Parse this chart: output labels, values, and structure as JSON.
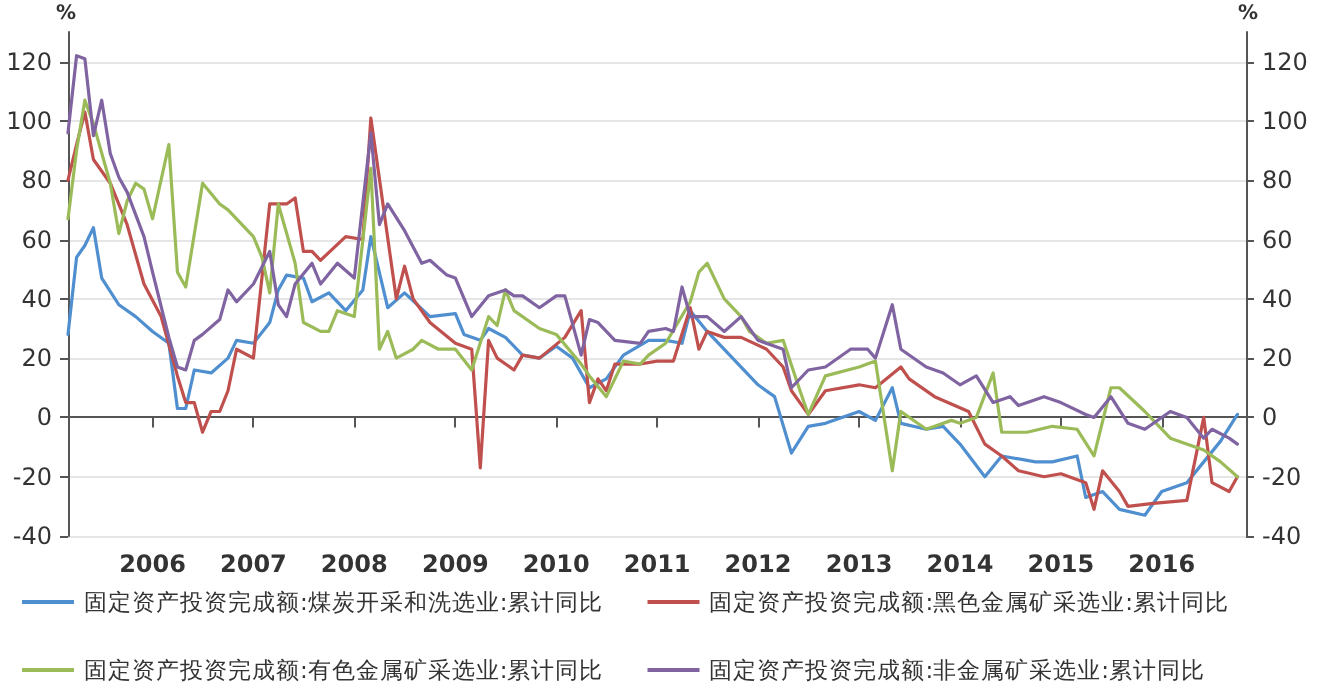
{
  "chart_data": {
    "type": "line",
    "ylabel": "%",
    "y2label": "%",
    "legend": "bottom",
    "grid": "y",
    "marker": "none",
    "line_style": "solid",
    "xlim": [
      "2005-03",
      "2016-11"
    ],
    "xticks": [
      "2006",
      "2007",
      "2008",
      "2009",
      "2010",
      "2011",
      "2012",
      "2013",
      "2014",
      "2015",
      "2016"
    ],
    "ylim": [
      -40,
      130
    ],
    "yticks": [
      -40,
      -20,
      0,
      20,
      40,
      60,
      80,
      100,
      120
    ],
    "y2lim": [
      -40,
      130
    ],
    "y2ticks": [
      -40,
      -20,
      0,
      20,
      40,
      60,
      80,
      100,
      120
    ],
    "series": [
      {
        "name": "固定资产投资完成额:煤炭开采和洗选业:累计同比",
        "color": "#4f8fd0",
        "x": [
          "2005-03",
          "2005-04",
          "2005-05",
          "2005-06",
          "2005-07",
          "2005-09",
          "2005-11",
          "2006-01",
          "2006-03",
          "2006-04",
          "2006-05",
          "2006-06",
          "2006-08",
          "2006-10",
          "2006-11",
          "2007-01",
          "2007-03",
          "2007-04",
          "2007-05",
          "2007-07",
          "2007-08",
          "2007-10",
          "2007-12",
          "2008-02",
          "2008-03",
          "2008-05",
          "2008-07",
          "2008-10",
          "2009-01",
          "2009-02",
          "2009-04",
          "2009-05",
          "2009-07",
          "2009-09",
          "2009-11",
          "2010-01",
          "2010-03",
          "2010-05",
          "2010-07",
          "2010-09",
          "2010-12",
          "2011-02",
          "2011-04",
          "2011-05",
          "2011-07",
          "2011-10",
          "2012-01",
          "2012-03",
          "2012-05",
          "2012-07",
          "2012-09",
          "2013-01",
          "2013-03",
          "2013-05",
          "2013-06",
          "2013-09",
          "2013-11",
          "2014-01",
          "2014-04",
          "2014-06",
          "2014-10",
          "2014-12",
          "2015-03",
          "2015-04",
          "2015-06",
          "2015-08",
          "2015-11",
          "2016-01",
          "2016-04",
          "2016-06",
          "2016-08",
          "2016-10"
        ],
        "values": [
          28,
          54,
          58,
          64,
          47,
          38,
          34,
          29,
          25,
          3,
          3,
          16,
          15,
          20,
          26,
          25,
          32,
          43,
          48,
          47,
          39,
          42,
          36,
          43,
          61,
          37,
          42,
          34,
          35,
          28,
          26,
          30,
          27,
          21,
          20,
          24,
          20,
          10,
          13,
          21,
          26,
          26,
          25,
          36,
          29,
          20,
          11,
          7,
          -12,
          -3,
          -2,
          2,
          -1,
          10,
          -2,
          -4,
          -3,
          -9,
          -20,
          -13,
          -15,
          -15,
          -13,
          -27,
          -25,
          -31,
          -33,
          -25,
          -22,
          -15,
          -8,
          1
        ]
      },
      {
        "name": "固定资产投资完成额:黑色金属矿采选业:累计同比",
        "color": "#c0504d",
        "x": [
          "2005-03",
          "2005-04",
          "2005-05",
          "2005-06",
          "2005-08",
          "2005-10",
          "2005-12",
          "2006-02",
          "2006-04",
          "2006-05",
          "2006-06",
          "2006-07",
          "2006-08",
          "2006-09",
          "2006-10",
          "2006-11",
          "2007-01",
          "2007-03",
          "2007-05",
          "2007-06",
          "2007-07",
          "2007-08",
          "2007-09",
          "2007-12",
          "2008-02",
          "2008-03",
          "2008-06",
          "2008-07",
          "2008-08",
          "2008-10",
          "2009-01",
          "2009-03",
          "2009-04",
          "2009-05",
          "2009-06",
          "2009-08",
          "2009-09",
          "2009-11",
          "2010-02",
          "2010-04",
          "2010-05",
          "2010-06",
          "2010-07",
          "2010-08",
          "2010-11",
          "2011-01",
          "2011-03",
          "2011-05",
          "2011-06",
          "2011-07",
          "2011-09",
          "2011-11",
          "2012-02",
          "2012-04",
          "2012-05",
          "2012-07",
          "2012-09",
          "2013-01",
          "2013-03",
          "2013-06",
          "2013-07",
          "2013-10",
          "2014-02",
          "2014-04",
          "2014-06",
          "2014-08",
          "2014-11",
          "2015-01",
          "2015-04",
          "2015-05",
          "2015-06",
          "2015-08",
          "2015-09",
          "2015-12",
          "2016-04",
          "2016-06",
          "2016-07",
          "2016-09",
          "2016-10"
        ],
        "values": [
          80,
          92,
          103,
          87,
          79,
          65,
          45,
          34,
          14,
          5,
          5,
          -5,
          2,
          2,
          9,
          23,
          20,
          72,
          72,
          74,
          56,
          56,
          53,
          61,
          60,
          101,
          40,
          51,
          40,
          32,
          25,
          23,
          -17,
          26,
          20,
          16,
          21,
          20,
          27,
          36,
          5,
          13,
          9,
          18,
          18,
          19,
          19,
          37,
          23,
          29,
          27,
          27,
          23,
          17,
          9,
          1,
          9,
          11,
          10,
          17,
          13,
          7,
          2,
          -9,
          -13,
          -18,
          -20,
          -19,
          -22,
          -31,
          -18,
          -25,
          -30,
          -29,
          -28,
          0,
          -22,
          -25,
          -20
        ]
      },
      {
        "name": "固定资产投资完成额:有色金属矿采选业:累计同比",
        "color": "#9bbb59",
        "x": [
          "2005-03",
          "2005-04",
          "2005-05",
          "2005-06",
          "2005-08",
          "2005-09",
          "2005-10",
          "2005-11",
          "2005-12",
          "2006-01",
          "2006-03",
          "2006-04",
          "2006-05",
          "2006-07",
          "2006-09",
          "2006-10",
          "2007-01",
          "2007-02",
          "2007-03",
          "2007-04",
          "2007-06",
          "2007-07",
          "2007-09",
          "2007-10",
          "2007-11",
          "2008-01",
          "2008-03",
          "2008-04",
          "2008-05",
          "2008-06",
          "2008-08",
          "2008-09",
          "2008-11",
          "2009-01",
          "2009-03",
          "2009-05",
          "2009-06",
          "2009-07",
          "2009-08",
          "2009-11",
          "2010-01",
          "2010-04",
          "2010-05",
          "2010-07",
          "2010-09",
          "2010-11",
          "2010-12",
          "2011-02",
          "2011-05",
          "2011-06",
          "2011-07",
          "2011-09",
          "2011-11",
          "2011-12",
          "2012-02",
          "2012-04",
          "2012-06",
          "2012-07",
          "2012-09",
          "2013-01",
          "2013-03",
          "2013-05",
          "2013-06",
          "2013-09",
          "2013-12",
          "2014-01",
          "2014-03",
          "2014-05",
          "2014-06",
          "2014-09",
          "2014-12",
          "2015-03",
          "2015-05",
          "2015-07",
          "2015-08",
          "2015-11",
          "2016-02",
          "2016-06",
          "2016-08",
          "2016-10"
        ],
        "values": [
          67,
          90,
          107,
          99,
          79,
          62,
          73,
          79,
          77,
          67,
          92,
          49,
          44,
          79,
          72,
          70,
          61,
          54,
          42,
          72,
          52,
          32,
          29,
          29,
          36,
          34,
          84,
          23,
          29,
          20,
          23,
          26,
          23,
          23,
          16,
          34,
          31,
          43,
          36,
          30,
          28,
          18,
          14,
          7,
          19,
          18,
          21,
          25,
          39,
          49,
          52,
          40,
          34,
          29,
          25,
          26,
          9,
          1,
          14,
          17,
          19,
          -18,
          2,
          -4,
          -1,
          -2,
          0,
          15,
          -5,
          -5,
          -3,
          -4,
          -13,
          10,
          10,
          2,
          -7,
          -11,
          -15,
          -20
        ]
      },
      {
        "name": "固定资产投资完成额:非金属矿采选业:累计同比",
        "color": "#8064a2",
        "x": [
          "2005-03",
          "2005-04",
          "2005-05",
          "2005-06",
          "2005-07",
          "2005-08",
          "2005-09",
          "2005-10",
          "2005-12",
          "2006-01",
          "2006-03",
          "2006-04",
          "2006-05",
          "2006-06",
          "2006-07",
          "2006-09",
          "2006-10",
          "2006-11",
          "2007-01",
          "2007-03",
          "2007-04",
          "2007-05",
          "2007-06",
          "2007-08",
          "2007-09",
          "2007-11",
          "2008-01",
          "2008-03",
          "2008-04",
          "2008-05",
          "2008-07",
          "2008-09",
          "2008-10",
          "2008-12",
          "2009-01",
          "2009-03",
          "2009-05",
          "2009-07",
          "2009-08",
          "2009-09",
          "2009-11",
          "2010-01",
          "2010-02",
          "2010-04",
          "2010-05",
          "2010-06",
          "2010-08",
          "2010-11",
          "2010-12",
          "2011-02",
          "2011-03",
          "2011-04",
          "2011-05",
          "2011-07",
          "2011-09",
          "2011-11",
          "2012-01",
          "2012-04",
          "2012-05",
          "2012-07",
          "2012-09",
          "2012-12",
          "2013-02",
          "2013-03",
          "2013-05",
          "2013-06",
          "2013-09",
          "2013-11",
          "2014-01",
          "2014-03",
          "2014-05",
          "2014-07",
          "2014-08",
          "2014-11",
          "2015-01",
          "2015-04",
          "2015-05",
          "2015-07",
          "2015-09",
          "2015-11",
          "2016-02",
          "2016-04",
          "2016-06",
          "2016-07",
          "2016-09",
          "2016-10"
        ],
        "values": [
          96,
          122,
          121,
          95,
          107,
          89,
          81,
          76,
          61,
          49,
          27,
          17,
          16,
          26,
          28,
          33,
          43,
          39,
          45,
          56,
          38,
          34,
          45,
          52,
          45,
          52,
          47,
          96,
          65,
          72,
          63,
          52,
          53,
          48,
          47,
          34,
          41,
          43,
          41,
          41,
          37,
          41,
          41,
          21,
          33,
          32,
          26,
          25,
          29,
          30,
          29,
          44,
          34,
          34,
          29,
          34,
          26,
          23,
          10,
          16,
          17,
          23,
          23,
          20,
          38,
          23,
          17,
          15,
          11,
          14,
          5,
          7,
          4,
          7,
          5,
          1,
          0,
          7,
          -2,
          -4,
          2,
          0,
          -7,
          -4,
          -7,
          -9
        ]
      }
    ]
  }
}
